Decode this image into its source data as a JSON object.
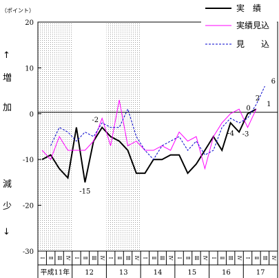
{
  "chart_data": {
    "type": "line",
    "unit_label": "（ポイント）",
    "side_label_top": [
      "↑",
      "増",
      "加"
    ],
    "side_label_bottom": [
      "減",
      "少",
      "↓"
    ],
    "ylim": [
      -30,
      20
    ],
    "yticks": [
      20,
      10,
      0,
      -10,
      -20,
      -30
    ],
    "quarter_labels": [
      "Ⅰ",
      "Ⅱ",
      "Ⅲ",
      "Ⅳ",
      "Ⅰ",
      "Ⅱ",
      "Ⅲ",
      "Ⅳ",
      "Ⅰ",
      "Ⅱ",
      "Ⅲ",
      "Ⅳ",
      "Ⅰ",
      "Ⅱ",
      "Ⅲ",
      "Ⅳ",
      "Ⅰ",
      "Ⅱ",
      "Ⅲ",
      "Ⅳ",
      "Ⅰ",
      "Ⅱ",
      "Ⅲ",
      "Ⅳ",
      "Ⅰ",
      "Ⅱ",
      "Ⅲ",
      "Ⅳ"
    ],
    "year_labels": [
      "平成11年",
      "12",
      "13",
      "14",
      "15",
      "16",
      "17"
    ],
    "shaded_years": [
      0,
      2
    ],
    "series": [
      {
        "name": "実　績",
        "color": "#000000",
        "style": "solid",
        "values": [
          -10,
          -9,
          -12,
          -14,
          -3,
          -15,
          -6,
          -3,
          -5,
          -6,
          -8,
          -13,
          -13,
          -10,
          -10,
          -9,
          -9,
          -13,
          -11,
          -8,
          -5,
          -8,
          -2,
          -4,
          0,
          1,
          null,
          null
        ]
      },
      {
        "name": "実績見込",
        "color": "#ff00ff",
        "style": "solid",
        "values": [
          -8,
          -10,
          -5,
          -8,
          -8,
          -8,
          -6,
          -1,
          -7,
          3,
          -7,
          -6,
          -8,
          -8,
          -7,
          -8,
          -4,
          -6,
          -5,
          -12,
          -5,
          -2,
          0,
          1,
          -3,
          1,
          null,
          null
        ]
      },
      {
        "name": "見　　込",
        "color": "#0000cc",
        "style": "dashed",
        "values": [
          null,
          -7,
          -3,
          -4,
          -6,
          -4,
          -5,
          -2,
          -3,
          -3,
          1,
          -5,
          -8,
          -10,
          -7,
          -6,
          -5,
          -8,
          -6,
          -9,
          -8,
          -3,
          -1,
          -2,
          -1,
          2,
          6,
          null
        ]
      }
    ],
    "annotations": [
      {
        "text": "-15",
        "index": 5,
        "value": -15
      },
      {
        "text": "-2",
        "index": 7,
        "value": -2
      },
      {
        "text": "-4",
        "index": 23,
        "value": -4
      },
      {
        "text": "0",
        "index": 24,
        "value": 0
      },
      {
        "text": "-3",
        "index": 24,
        "value": -3
      },
      {
        "text": "2",
        "index": 25,
        "value": 2
      },
      {
        "text": "1",
        "index": 26,
        "value": 1
      },
      {
        "text": "6",
        "index": 27,
        "value": 6
      }
    ]
  }
}
